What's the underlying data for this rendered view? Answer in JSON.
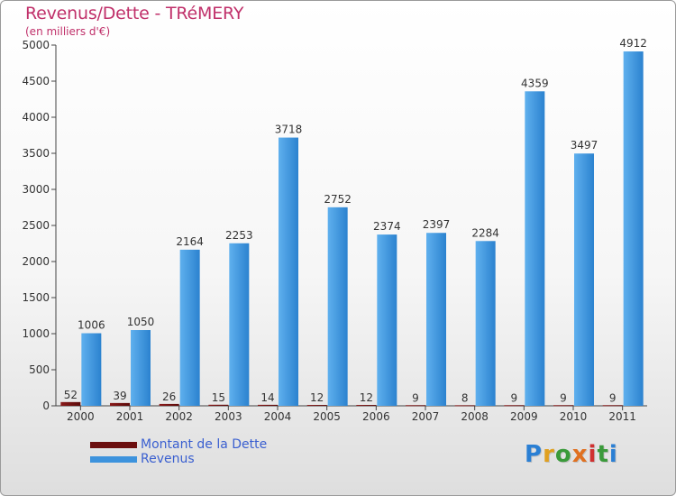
{
  "chart_data": {
    "type": "bar",
    "title": "Revenus/Dette - TRéMERY",
    "subtitle": "(en milliers d'€)",
    "categories": [
      "2000",
      "2001",
      "2002",
      "2003",
      "2004",
      "2005",
      "2006",
      "2007",
      "2008",
      "2009",
      "2010",
      "2011"
    ],
    "series": [
      {
        "name": "Montant de la Dette",
        "color": "#6b0e0e",
        "values": [
          52,
          39,
          26,
          15,
          14,
          12,
          12,
          9,
          8,
          9,
          9,
          9
        ]
      },
      {
        "name": "Revenus",
        "color": "#3d93dd",
        "values": [
          1006,
          1050,
          2164,
          2253,
          3718,
          2752,
          2374,
          2397,
          2284,
          4359,
          3497,
          4912
        ]
      }
    ],
    "yticks": [
      0,
      500,
      1000,
      1500,
      2000,
      2500,
      3000,
      3500,
      4000,
      4500,
      5000
    ],
    "ylim": [
      0,
      5000
    ],
    "grid": false,
    "legend": "bottom-left"
  },
  "logo": {
    "letters": [
      {
        "ch": "P",
        "color": "#2a7fd4"
      },
      {
        "ch": "r",
        "color": "#e0a020"
      },
      {
        "ch": "o",
        "color": "#3a9a3a"
      },
      {
        "ch": "x",
        "color": "#e07020"
      },
      {
        "ch": "i",
        "color": "#d03030"
      },
      {
        "ch": "t",
        "color": "#3a9a3a"
      },
      {
        "ch": "i",
        "color": "#2a7fd4"
      }
    ]
  }
}
